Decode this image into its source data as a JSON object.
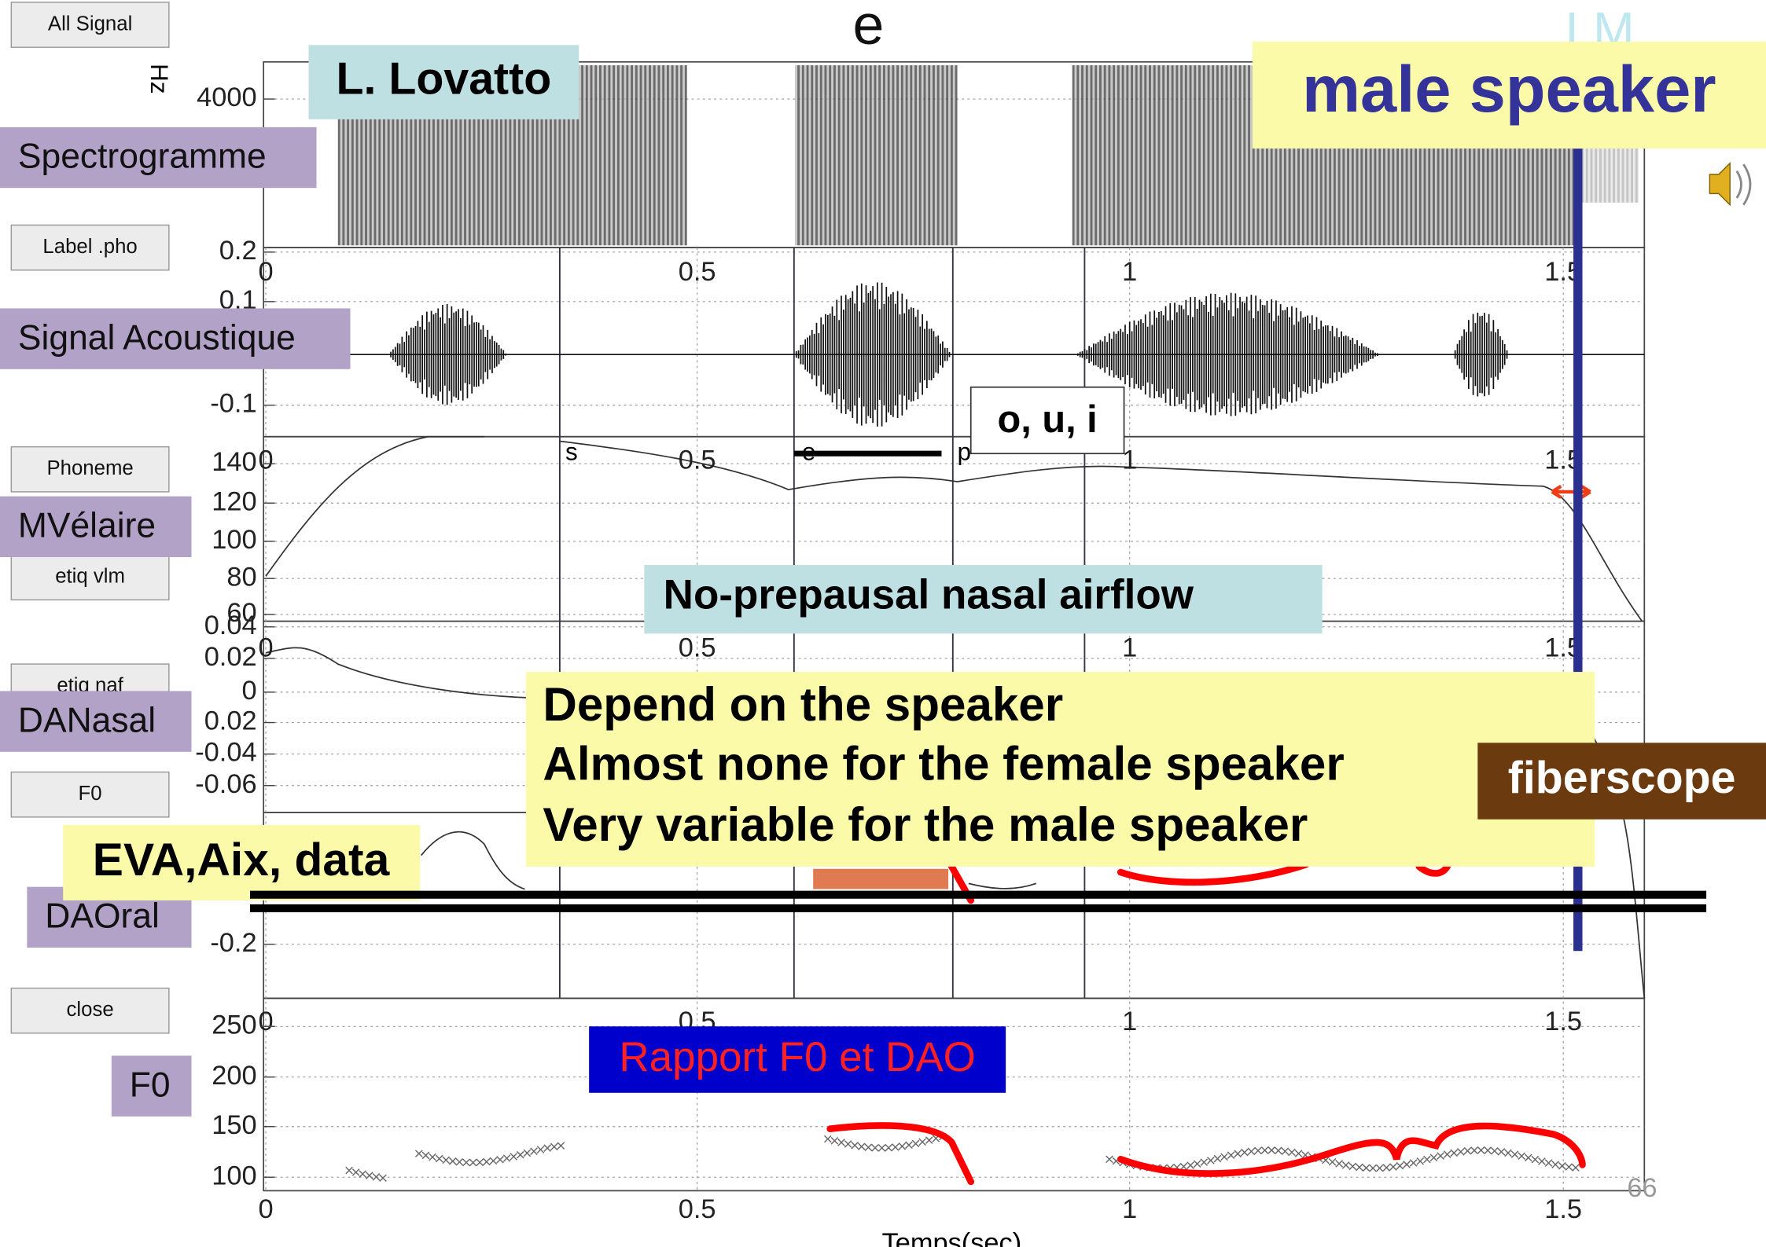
{
  "title": "e",
  "logo": "LM",
  "buttons": [
    "All Signal",
    "Label .pho",
    "Phoneme",
    "etiq vlm",
    "etiq naf",
    "F0",
    "close"
  ],
  "panel_labels": [
    "Spectrogramme",
    "Signal Acoustique",
    "MVélaire",
    "DANasal",
    "DAOral",
    "F0"
  ],
  "author": "L. Lovatto",
  "speaker": "male speaker",
  "vowels": "o, u, i",
  "phonemes": [
    "s",
    "e",
    "p"
  ],
  "nasal_note": "No-prepausal nasal airflow",
  "notes": [
    "Depend on the speaker",
    "Almost none for the female speaker",
    "Very variable for the male speaker"
  ],
  "source": "EVA,Aix, data",
  "device": "fiberscope",
  "relation": "Rapport F0 et DAO",
  "page_number": "66",
  "x_axis_label": "Temps(sec)",
  "spectrogram_y_label": "Hz",
  "time_ticks": [
    "0",
    "0.5",
    "1",
    "1.5"
  ],
  "y_ticks": {
    "spectrogram": [
      "4000",
      "0.2"
    ],
    "signal": [
      "0.1",
      "-0.1"
    ],
    "velum": [
      "140",
      "120",
      "100",
      "80",
      "60"
    ],
    "nasal": [
      "0.04",
      "0.02",
      "0",
      "0.02",
      "-0.04",
      "-0.06"
    ],
    "oral": [
      "-0.2"
    ],
    "f0": [
      "250",
      "200",
      "150",
      "100"
    ]
  }
}
